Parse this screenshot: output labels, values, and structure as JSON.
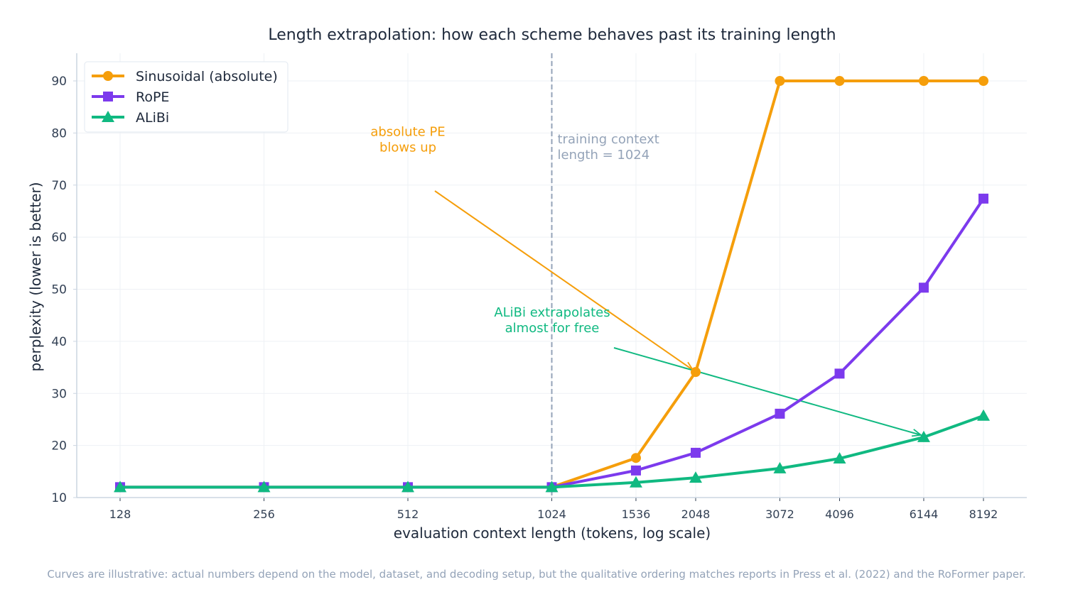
{
  "chart_data": {
    "type": "line",
    "title": "Length extrapolation: how each scheme behaves past its training length",
    "xlabel": "evaluation context length (tokens, log scale)",
    "ylabel": "perplexity (lower is better)",
    "x_scale": "log",
    "x": [
      128,
      256,
      512,
      1024,
      1536,
      2048,
      3072,
      4096,
      6144,
      8192
    ],
    "x_tick_labels": [
      "128",
      "256",
      "512",
      "1024",
      "1536",
      "2048",
      "3072",
      "4096",
      "6144",
      "8192"
    ],
    "y_ticks": [
      10,
      20,
      30,
      40,
      50,
      60,
      70,
      80,
      90
    ],
    "ylim": [
      10,
      95
    ],
    "grid": true,
    "legend_position": "top-left",
    "series": [
      {
        "name": "Sinusoidal (absolute)",
        "color": "#f59e0b",
        "marker": "circle",
        "values": [
          12,
          12,
          12,
          12,
          17.6,
          34.1,
          90,
          90,
          90,
          90
        ]
      },
      {
        "name": "RoPE",
        "color": "#7c3aed",
        "marker": "square",
        "values": [
          12,
          12,
          12,
          12,
          15.2,
          18.6,
          26.1,
          33.8,
          50.3,
          67.4
        ]
      },
      {
        "name": "ALiBi",
        "color": "#10b981",
        "marker": "triangle",
        "values": [
          12,
          12,
          12,
          12,
          12.9,
          13.8,
          15.6,
          17.5,
          21.6,
          25.7
        ]
      }
    ],
    "vline": {
      "x": 1024,
      "label_line1": "training context",
      "label_line2": "length = 1024",
      "color": "#94a3b8"
    },
    "annotations": [
      {
        "line1": "absolute PE",
        "line2": "blows up",
        "color": "#f59e0b",
        "text_x": 724,
        "text_y": 77,
        "target_x": 2048,
        "target_y": 34.1
      },
      {
        "line1": "ALiBi extrapolates",
        "line2": "almost for free",
        "color": "#10b981",
        "text_x": 1024,
        "text_y": 42.3,
        "target_x": 6144,
        "target_y": 21.6
      }
    ],
    "footnote": "Curves are illustrative: actual numbers depend on the model, dataset, and decoding setup, but the qualitative ordering matches reports in Press et al. (2022) and the RoFormer paper."
  }
}
